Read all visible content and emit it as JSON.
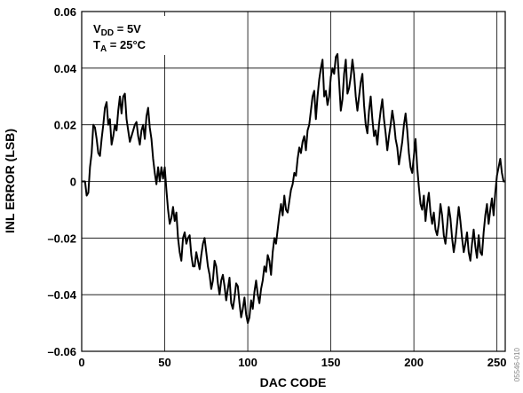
{
  "chart_data": {
    "type": "line",
    "xlabel": "DAC CODE",
    "ylabel": "INL ERROR (LSB)",
    "xlim": [
      0,
      255
    ],
    "ylim": [
      -0.06,
      0.06
    ],
    "x_ticks": [
      0,
      50,
      100,
      150,
      200,
      250
    ],
    "x_tick_labels": [
      "0",
      "50",
      "100",
      "150",
      "200",
      "250"
    ],
    "y_ticks": [
      0.06,
      0.04,
      0.02,
      0,
      -0.02,
      -0.04,
      -0.06
    ],
    "y_tick_labels": [
      "0.06",
      "0.04",
      "0.02",
      "0",
      "–0.02",
      "–0.04",
      "–0.06"
    ],
    "grid": true,
    "legend_position": "top-left",
    "conditions": {
      "vdd": {
        "symbol": "V",
        "subscript": "DD",
        "value": " = 5V"
      },
      "ta": {
        "symbol": "T",
        "subscript": "A",
        "value": " = 25°C"
      }
    },
    "figure_code": "05546-010",
    "series": [
      {
        "color": "#000000",
        "points": [
          [
            0,
            0
          ],
          [
            2,
            0
          ],
          [
            3,
            -0.005
          ],
          [
            4,
            -0.004
          ],
          [
            5,
            0.005
          ],
          [
            6,
            0.01
          ],
          [
            7,
            0.02
          ],
          [
            8,
            0.019
          ],
          [
            9,
            0.015
          ],
          [
            10,
            0.01
          ],
          [
            11,
            0.009
          ],
          [
            12,
            0.015
          ],
          [
            13,
            0.02
          ],
          [
            14,
            0.026
          ],
          [
            15,
            0.028
          ],
          [
            16,
            0.02
          ],
          [
            17,
            0.022
          ],
          [
            18,
            0.013
          ],
          [
            19,
            0.016
          ],
          [
            20,
            0.02
          ],
          [
            21,
            0.018
          ],
          [
            22,
            0.025
          ],
          [
            23,
            0.03
          ],
          [
            24,
            0.024
          ],
          [
            25,
            0.03
          ],
          [
            26,
            0.031
          ],
          [
            27,
            0.022
          ],
          [
            28,
            0.018
          ],
          [
            29,
            0.014
          ],
          [
            30,
            0.016
          ],
          [
            31,
            0.018
          ],
          [
            32,
            0.02
          ],
          [
            33,
            0.021
          ],
          [
            34,
            0.016
          ],
          [
            35,
            0.013
          ],
          [
            36,
            0.018
          ],
          [
            37,
            0.02
          ],
          [
            38,
            0.015
          ],
          [
            39,
            0.023
          ],
          [
            40,
            0.026
          ],
          [
            41,
            0.019
          ],
          [
            42,
            0.015
          ],
          [
            43,
            0.008
          ],
          [
            44,
            0.003
          ],
          [
            45,
            -0.001
          ],
          [
            46,
            0.005
          ],
          [
            47,
            0.0
          ],
          [
            48,
            0.005
          ],
          [
            49,
            0.001
          ],
          [
            50,
            0.005
          ],
          [
            51,
            -0.003
          ],
          [
            52,
            -0.01
          ],
          [
            53,
            -0.015
          ],
          [
            54,
            -0.013
          ],
          [
            55,
            -0.009
          ],
          [
            56,
            -0.014
          ],
          [
            57,
            -0.011
          ],
          [
            58,
            -0.02
          ],
          [
            59,
            -0.025
          ],
          [
            60,
            -0.028
          ],
          [
            61,
            -0.02
          ],
          [
            62,
            -0.018
          ],
          [
            63,
            -0.022
          ],
          [
            64,
            -0.02
          ],
          [
            65,
            -0.019
          ],
          [
            66,
            -0.026
          ],
          [
            67,
            -0.03
          ],
          [
            68,
            -0.03
          ],
          [
            69,
            -0.025
          ],
          [
            70,
            -0.028
          ],
          [
            71,
            -0.031
          ],
          [
            72,
            -0.026
          ],
          [
            73,
            -0.022
          ],
          [
            74,
            -0.02
          ],
          [
            75,
            -0.025
          ],
          [
            76,
            -0.03
          ],
          [
            77,
            -0.033
          ],
          [
            78,
            -0.038
          ],
          [
            79,
            -0.035
          ],
          [
            80,
            -0.028
          ],
          [
            81,
            -0.03
          ],
          [
            82,
            -0.036
          ],
          [
            83,
            -0.04
          ],
          [
            84,
            -0.035
          ],
          [
            85,
            -0.033
          ],
          [
            86,
            -0.037
          ],
          [
            87,
            -0.042
          ],
          [
            88,
            -0.038
          ],
          [
            89,
            -0.034
          ],
          [
            90,
            -0.043
          ],
          [
            91,
            -0.045
          ],
          [
            92,
            -0.041
          ],
          [
            93,
            -0.036
          ],
          [
            94,
            -0.037
          ],
          [
            95,
            -0.043
          ],
          [
            96,
            -0.048
          ],
          [
            97,
            -0.045
          ],
          [
            98,
            -0.041
          ],
          [
            99,
            -0.047
          ],
          [
            100,
            -0.05
          ],
          [
            101,
            -0.048
          ],
          [
            102,
            -0.042
          ],
          [
            103,
            -0.045
          ],
          [
            104,
            -0.039
          ],
          [
            105,
            -0.035
          ],
          [
            106,
            -0.04
          ],
          [
            107,
            -0.043
          ],
          [
            108,
            -0.038
          ],
          [
            109,
            -0.035
          ],
          [
            110,
            -0.03
          ],
          [
            111,
            -0.032
          ],
          [
            112,
            -0.026
          ],
          [
            113,
            -0.028
          ],
          [
            114,
            -0.033
          ],
          [
            115,
            -0.025
          ],
          [
            116,
            -0.02
          ],
          [
            117,
            -0.022
          ],
          [
            118,
            -0.017
          ],
          [
            119,
            -0.012
          ],
          [
            120,
            -0.008
          ],
          [
            121,
            -0.012
          ],
          [
            122,
            -0.005
          ],
          [
            123,
            -0.01
          ],
          [
            124,
            -0.011
          ],
          [
            125,
            -0.007
          ],
          [
            126,
            -0.003
          ],
          [
            127,
            -0.001
          ],
          [
            128,
            0.003
          ],
          [
            129,
            0.002
          ],
          [
            130,
            0.008
          ],
          [
            131,
            0.012
          ],
          [
            132,
            0.01
          ],
          [
            133,
            0.014
          ],
          [
            134,
            0.016
          ],
          [
            135,
            0.011
          ],
          [
            136,
            0.018
          ],
          [
            137,
            0.02
          ],
          [
            138,
            0.025
          ],
          [
            139,
            0.03
          ],
          [
            140,
            0.032
          ],
          [
            141,
            0.022
          ],
          [
            142,
            0.03
          ],
          [
            143,
            0.036
          ],
          [
            144,
            0.04
          ],
          [
            145,
            0.043
          ],
          [
            146,
            0.03
          ],
          [
            147,
            0.032
          ],
          [
            148,
            0.027
          ],
          [
            149,
            0.03
          ],
          [
            150,
            0.037
          ],
          [
            151,
            0.04
          ],
          [
            152,
            0.038
          ],
          [
            153,
            0.044
          ],
          [
            154,
            0.045
          ],
          [
            155,
            0.035
          ],
          [
            156,
            0.025
          ],
          [
            157,
            0.029
          ],
          [
            158,
            0.038
          ],
          [
            159,
            0.043
          ],
          [
            160,
            0.031
          ],
          [
            161,
            0.033
          ],
          [
            162,
            0.037
          ],
          [
            163,
            0.043
          ],
          [
            164,
            0.038
          ],
          [
            165,
            0.03
          ],
          [
            166,
            0.025
          ],
          [
            167,
            0.03
          ],
          [
            168,
            0.035
          ],
          [
            169,
            0.038
          ],
          [
            170,
            0.027
          ],
          [
            171,
            0.02
          ],
          [
            172,
            0.017
          ],
          [
            173,
            0.025
          ],
          [
            174,
            0.03
          ],
          [
            175,
            0.022
          ],
          [
            176,
            0.016
          ],
          [
            177,
            0.018
          ],
          [
            178,
            0.013
          ],
          [
            179,
            0.02
          ],
          [
            180,
            0.025
          ],
          [
            181,
            0.029
          ],
          [
            182,
            0.022
          ],
          [
            183,
            0.017
          ],
          [
            184,
            0.011
          ],
          [
            185,
            0.016
          ],
          [
            186,
            0.02
          ],
          [
            187,
            0.025
          ],
          [
            188,
            0.021
          ],
          [
            189,
            0.015
          ],
          [
            190,
            0.012
          ],
          [
            191,
            0.006
          ],
          [
            192,
            0.01
          ],
          [
            193,
            0.014
          ],
          [
            194,
            0.02
          ],
          [
            195,
            0.024
          ],
          [
            196,
            0.018
          ],
          [
            197,
            0.01
          ],
          [
            198,
            0.005
          ],
          [
            199,
            0.003
          ],
          [
            200,
            0.009
          ],
          [
            201,
            0.015
          ],
          [
            202,
            0.005
          ],
          [
            203,
            -0.002
          ],
          [
            204,
            -0.008
          ],
          [
            205,
            -0.01
          ],
          [
            206,
            -0.005
          ],
          [
            207,
            -0.014
          ],
          [
            208,
            -0.008
          ],
          [
            209,
            -0.004
          ],
          [
            210,
            -0.011
          ],
          [
            211,
            -0.015
          ],
          [
            212,
            -0.011
          ],
          [
            213,
            -0.017
          ],
          [
            214,
            -0.019
          ],
          [
            215,
            -0.015
          ],
          [
            216,
            -0.008
          ],
          [
            217,
            -0.012
          ],
          [
            218,
            -0.019
          ],
          [
            219,
            -0.022
          ],
          [
            220,
            -0.016
          ],
          [
            221,
            -0.009
          ],
          [
            222,
            -0.013
          ],
          [
            223,
            -0.02
          ],
          [
            224,
            -0.025
          ],
          [
            225,
            -0.021
          ],
          [
            226,
            -0.015
          ],
          [
            227,
            -0.009
          ],
          [
            228,
            -0.014
          ],
          [
            229,
            -0.02
          ],
          [
            230,
            -0.025
          ],
          [
            231,
            -0.022
          ],
          [
            232,
            -0.018
          ],
          [
            233,
            -0.025
          ],
          [
            234,
            -0.028
          ],
          [
            235,
            -0.022
          ],
          [
            236,
            -0.017
          ],
          [
            237,
            -0.023
          ],
          [
            238,
            -0.027
          ],
          [
            239,
            -0.019
          ],
          [
            240,
            -0.025
          ],
          [
            241,
            -0.026
          ],
          [
            242,
            -0.018
          ],
          [
            243,
            -0.012
          ],
          [
            244,
            -0.008
          ],
          [
            245,
            -0.015
          ],
          [
            246,
            -0.01
          ],
          [
            247,
            -0.006
          ],
          [
            248,
            -0.012
          ],
          [
            249,
            -0.004
          ],
          [
            250,
            0.002
          ],
          [
            251,
            0.005
          ],
          [
            252,
            0.008
          ],
          [
            253,
            0.003
          ],
          [
            254,
            0.0
          ],
          [
            255,
            0.0
          ]
        ]
      }
    ]
  }
}
